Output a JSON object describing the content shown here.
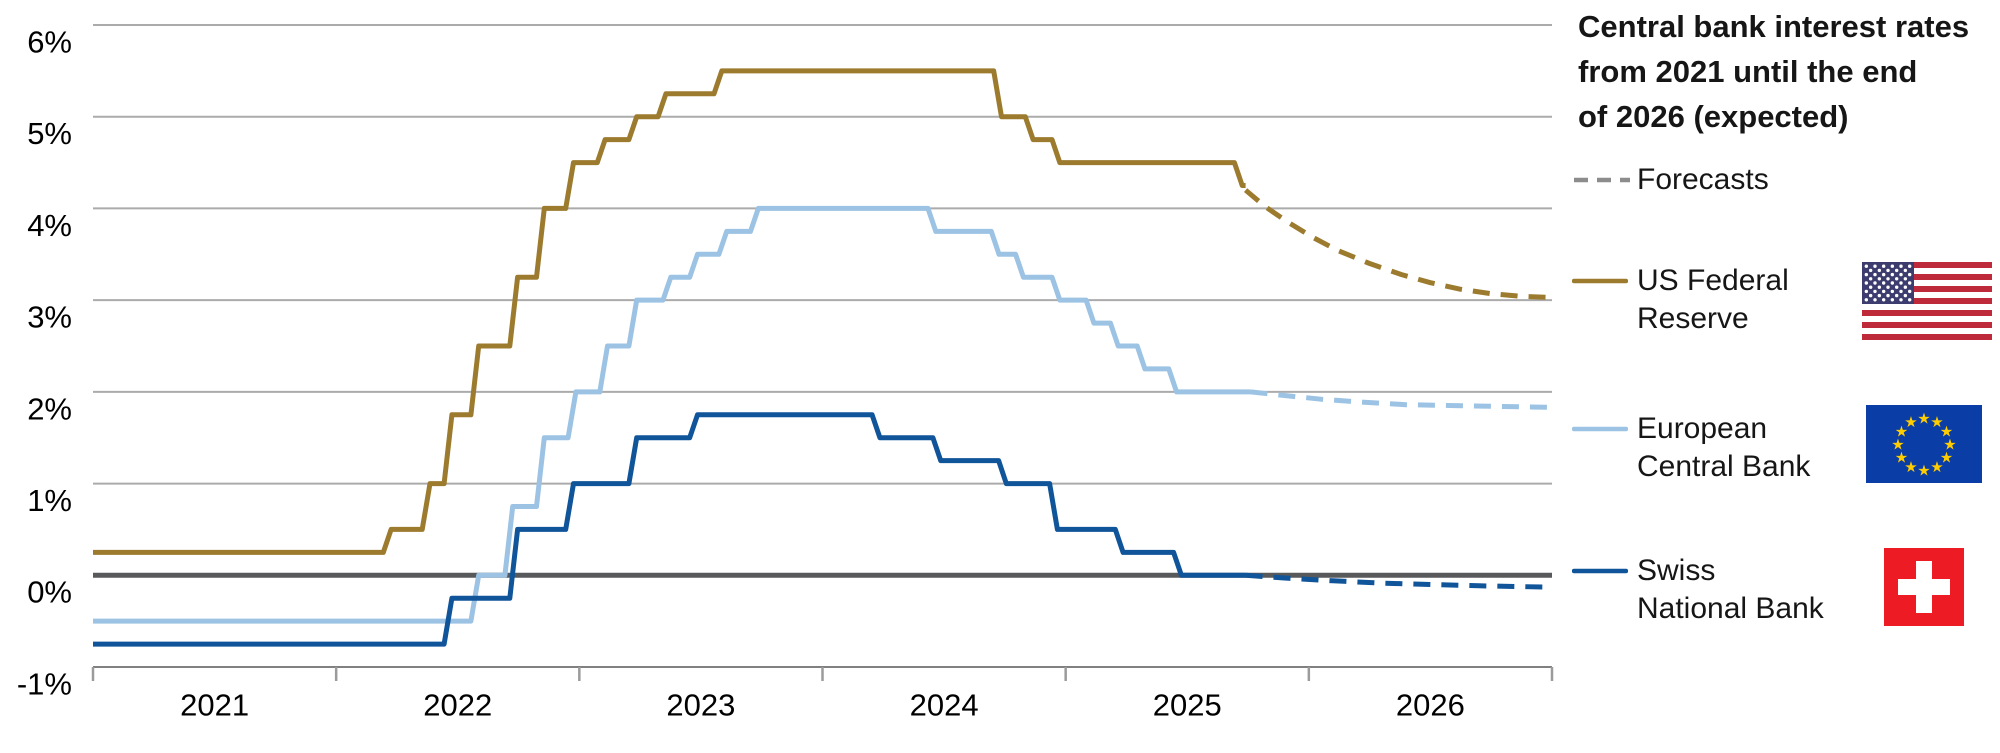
{
  "title": {
    "lines": [
      "Central bank interest rates",
      "from 2021 until the end",
      "of 2026 (expected)"
    ]
  },
  "legend": {
    "forecasts": {
      "label": "Forecasts",
      "color": "#8C8C8C"
    },
    "entries": [
      {
        "label_lines": [
          "US Federal",
          "Reserve"
        ],
        "color": "#9C7B2E",
        "flag": "us"
      },
      {
        "label_lines": [
          "European",
          "Central Bank"
        ],
        "color": "#9CC3E4",
        "flag": "eu"
      },
      {
        "label_lines": [
          "Swiss",
          "National Bank"
        ],
        "color": "#10549A",
        "flag": "ch"
      }
    ]
  },
  "chart_data": {
    "type": "line",
    "title": "Central bank interest rates from 2021 until the end of 2026 (expected)",
    "x_domain": [
      2021,
      2027
    ],
    "x_tick_positions": [
      2021,
      2022,
      2023,
      2024,
      2025,
      2026,
      2027
    ],
    "x_tick_labels": [
      "2021",
      "2022",
      "2023",
      "2024",
      "2025",
      "2026"
    ],
    "ylim": [
      -1,
      6
    ],
    "y_ticks": [
      6,
      5,
      4,
      3,
      2,
      1,
      0,
      -1
    ],
    "y_tick_labels": [
      "6%",
      "5%",
      "4%",
      "3%",
      "2%",
      "1%",
      "0%",
      "-1%"
    ],
    "grid": true,
    "grid_color": "#ABABAB",
    "zero_line_color": "#58595B",
    "axis_color": "#808080",
    "forecast_color": "#8C8C8C",
    "forecast_legend": "Forecasts",
    "series": [
      {
        "name": "US Federal Reserve",
        "color": "#9C7B2E",
        "rate_changes": [
          [
            2021.0,
            0.25
          ],
          [
            2022.21,
            0.5
          ],
          [
            2022.37,
            1.0
          ],
          [
            2022.46,
            1.75
          ],
          [
            2022.57,
            2.5
          ],
          [
            2022.73,
            3.25
          ],
          [
            2022.84,
            4.0
          ],
          [
            2022.96,
            4.5
          ],
          [
            2023.09,
            4.75
          ],
          [
            2023.22,
            5.0
          ],
          [
            2023.34,
            5.25
          ],
          [
            2023.57,
            5.5
          ],
          [
            2024.72,
            5.0
          ],
          [
            2024.85,
            4.75
          ],
          [
            2024.96,
            4.5
          ],
          [
            2025.71,
            4.25
          ]
        ],
        "solid_until": 2025.74,
        "forecast": [
          [
            2025.74,
            4.2
          ],
          [
            2025.82,
            4.02
          ],
          [
            2025.92,
            3.84
          ],
          [
            2026.02,
            3.68
          ],
          [
            2026.12,
            3.54
          ],
          [
            2026.25,
            3.4
          ],
          [
            2026.38,
            3.28
          ],
          [
            2026.5,
            3.19
          ],
          [
            2026.62,
            3.12
          ],
          [
            2026.75,
            3.07
          ],
          [
            2026.88,
            3.04
          ],
          [
            2027.0,
            3.03
          ]
        ]
      },
      {
        "name": "European Central Bank",
        "color": "#9CC3E4",
        "rate_changes": [
          [
            2021.0,
            -0.5
          ],
          [
            2022.57,
            0.0
          ],
          [
            2022.71,
            0.75
          ],
          [
            2022.84,
            1.5
          ],
          [
            2022.97,
            2.0
          ],
          [
            2023.1,
            2.5
          ],
          [
            2023.22,
            3.0
          ],
          [
            2023.36,
            3.25
          ],
          [
            2023.47,
            3.5
          ],
          [
            2023.59,
            3.75
          ],
          [
            2023.72,
            4.0
          ],
          [
            2024.45,
            3.75
          ],
          [
            2024.71,
            3.5
          ],
          [
            2024.81,
            3.25
          ],
          [
            2024.96,
            3.0
          ],
          [
            2025.1,
            2.75
          ],
          [
            2025.2,
            2.5
          ],
          [
            2025.31,
            2.25
          ],
          [
            2025.44,
            2.0
          ]
        ],
        "solid_until": 2025.76,
        "forecast": [
          [
            2025.76,
            2.0
          ],
          [
            2025.9,
            1.96
          ],
          [
            2026.05,
            1.92
          ],
          [
            2026.2,
            1.89
          ],
          [
            2026.4,
            1.86
          ],
          [
            2026.6,
            1.85
          ],
          [
            2026.8,
            1.84
          ],
          [
            2027.0,
            1.83
          ]
        ]
      },
      {
        "name": "Swiss National Bank",
        "color": "#10549A",
        "rate_changes": [
          [
            2021.0,
            -0.75
          ],
          [
            2022.46,
            -0.25
          ],
          [
            2022.73,
            0.5
          ],
          [
            2022.96,
            1.0
          ],
          [
            2023.22,
            1.5
          ],
          [
            2023.47,
            1.75
          ],
          [
            2024.22,
            1.5
          ],
          [
            2024.47,
            1.25
          ],
          [
            2024.74,
            1.0
          ],
          [
            2024.95,
            0.5
          ],
          [
            2025.22,
            0.25
          ],
          [
            2025.46,
            0.0
          ]
        ],
        "solid_until": 2025.74,
        "forecast": [
          [
            2025.74,
            0.0
          ],
          [
            2025.9,
            -0.03
          ],
          [
            2026.1,
            -0.06
          ],
          [
            2026.3,
            -0.085
          ],
          [
            2026.5,
            -0.1
          ],
          [
            2026.7,
            -0.115
          ],
          [
            2027.0,
            -0.13
          ]
        ]
      }
    ]
  }
}
